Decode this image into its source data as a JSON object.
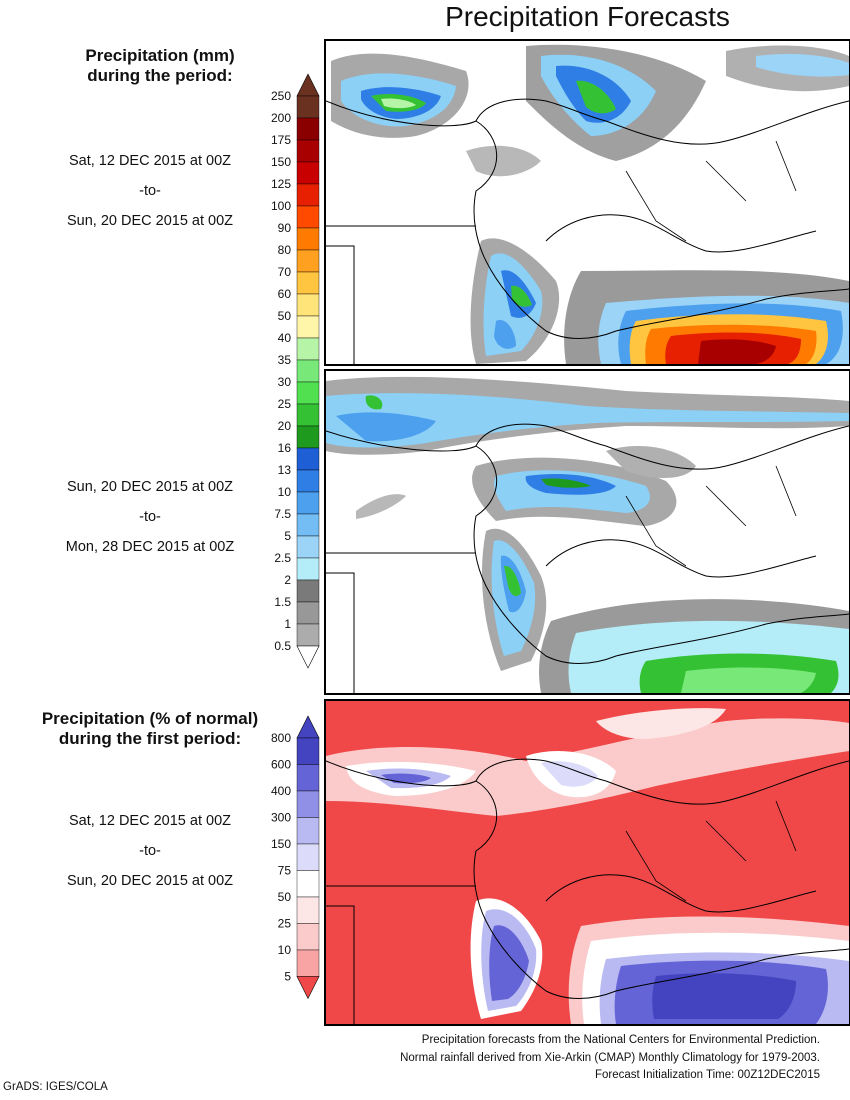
{
  "title": "Precipitation Forecasts",
  "legend_mm": {
    "title_line1": "Precipitation (mm)",
    "title_line2": "during the period:",
    "levels": [
      "0.5",
      "1",
      "1.5",
      "2",
      "2.5",
      "5",
      "7.5",
      "10",
      "13",
      "16",
      "20",
      "25",
      "30",
      "35",
      "40",
      "50",
      "60",
      "70",
      "80",
      "90",
      "100",
      "125",
      "150",
      "175",
      "200",
      "250"
    ],
    "colors": [
      "#c4c4c4",
      "#acacac",
      "#989898",
      "#7a7a7a",
      "#b4ecf8",
      "#9cd4f8",
      "#74bcf4",
      "#4ca0ee",
      "#2f7ee6",
      "#1f5fd6",
      "#1e9a1e",
      "#34c234",
      "#50e050",
      "#78e878",
      "#b6f4a8",
      "#fff6aa",
      "#ffe47a",
      "#ffc440",
      "#ffa020",
      "#ff7a00",
      "#ff4a00",
      "#e62000",
      "#c80000",
      "#a80000",
      "#8a0000",
      "#6a3020"
    ]
  },
  "legend_pct": {
    "title_line1": "Precipitation (% of normal)",
    "title_line2": "during the first period:",
    "levels": [
      "5",
      "10",
      "25",
      "50",
      "75",
      "150",
      "300",
      "400",
      "600",
      "800"
    ],
    "colors": [
      "#f04848",
      "#f47878",
      "#f8a4a4",
      "#fbcaca",
      "#fde6e6",
      "#ffffff",
      "#dcdcfa",
      "#babaf2",
      "#9090e6",
      "#6464d6",
      "#4444c0"
    ]
  },
  "periods": [
    {
      "start": "Sat, 12 DEC 2015 at 00Z",
      "sep": "-to-",
      "end": "Sun, 20 DEC 2015 at 00Z"
    },
    {
      "start": "Sun, 20 DEC 2015 at 00Z",
      "sep": "-to-",
      "end": "Mon, 28 DEC 2015 at 00Z"
    },
    {
      "start": "Sat, 12 DEC 2015 at 00Z",
      "sep": "-to-",
      "end": "Sun, 20 DEC 2015 at 00Z"
    }
  ],
  "footer": {
    "line1": "Precipitation forecasts from the National Centers for Environmental Prediction.",
    "line2": "Normal rainfall derived from Xie-Arkin (CMAP) Monthly Climatology for 1979-2003.",
    "line3": "Forecast Initialization Time: 00Z12DEC2015"
  },
  "credit": "GrADS: IGES/COLA"
}
